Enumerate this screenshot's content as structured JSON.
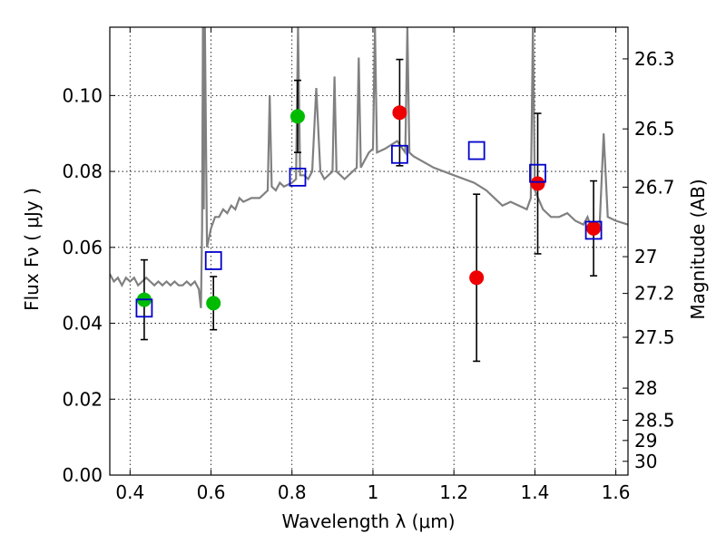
{
  "chart_data": {
    "type": "scatter",
    "xlabel": "Wavelength  λ (μm)",
    "ylabel": "Flux  Fν  ( μJy )",
    "y2label": "Magnitude (AB)",
    "xlim": [
      0.35,
      1.63
    ],
    "ylim": [
      0.0,
      0.118
    ],
    "grid": true,
    "x_ticks": [
      {
        "value": 0.4,
        "label": "0.4"
      },
      {
        "value": 0.6,
        "label": "0.6"
      },
      {
        "value": 0.8,
        "label": "0.8"
      },
      {
        "value": 1.0,
        "label": "1"
      },
      {
        "value": 1.2,
        "label": "1.2"
      },
      {
        "value": 1.4,
        "label": "1.4"
      },
      {
        "value": 1.6,
        "label": "1.6"
      }
    ],
    "y_ticks": [
      {
        "value": 0.0,
        "label": "0.00"
      },
      {
        "value": 0.02,
        "label": "0.02"
      },
      {
        "value": 0.04,
        "label": "0.04"
      },
      {
        "value": 0.06,
        "label": "0.06"
      },
      {
        "value": 0.08,
        "label": "0.08"
      },
      {
        "value": 0.1,
        "label": "0.10"
      }
    ],
    "y2_ticks": [
      {
        "label": "26.3",
        "mag": 26.3
      },
      {
        "label": "26.5",
        "mag": 26.5
      },
      {
        "label": "26.7",
        "mag": 26.7
      },
      {
        "label": "27",
        "mag": 27.0
      },
      {
        "label": "27.2",
        "mag": 27.2
      },
      {
        "label": "27.5",
        "mag": 27.5
      },
      {
        "label": "28",
        "mag": 28.0
      },
      {
        "label": "28.5",
        "mag": 28.5
      },
      {
        "label": "29",
        "mag": 29.0
      },
      {
        "label": "30",
        "mag": 30.0
      }
    ],
    "colors": {
      "spectrum": "#808080",
      "green_points": "#00bb00",
      "red_points": "#ee0000",
      "model_squares": "#0000cc",
      "errorbar": "#000000",
      "grid": "#000000"
    },
    "series": [
      {
        "kind": "spectrum",
        "points": [
          [
            0.35,
            0.053
          ],
          [
            0.36,
            0.051
          ],
          [
            0.37,
            0.052
          ],
          [
            0.38,
            0.05
          ],
          [
            0.39,
            0.052
          ],
          [
            0.4,
            0.051
          ],
          [
            0.41,
            0.052
          ],
          [
            0.42,
            0.05
          ],
          [
            0.43,
            0.051
          ],
          [
            0.44,
            0.052
          ],
          [
            0.45,
            0.051
          ],
          [
            0.46,
            0.05
          ],
          [
            0.47,
            0.051
          ],
          [
            0.48,
            0.05
          ],
          [
            0.49,
            0.051
          ],
          [
            0.5,
            0.05
          ],
          [
            0.51,
            0.051
          ],
          [
            0.52,
            0.05
          ],
          [
            0.53,
            0.05
          ],
          [
            0.54,
            0.051
          ],
          [
            0.55,
            0.05
          ],
          [
            0.56,
            0.051
          ],
          [
            0.57,
            0.049
          ],
          [
            0.575,
            0.044
          ],
          [
            0.578,
            0.065
          ],
          [
            0.58,
            0.118
          ],
          [
            0.582,
            0.07
          ],
          [
            0.585,
            0.118
          ],
          [
            0.59,
            0.06
          ],
          [
            0.6,
            0.065
          ],
          [
            0.61,
            0.068
          ],
          [
            0.62,
            0.068
          ],
          [
            0.63,
            0.07
          ],
          [
            0.64,
            0.069
          ],
          [
            0.65,
            0.071
          ],
          [
            0.66,
            0.07
          ],
          [
            0.67,
            0.073
          ],
          [
            0.68,
            0.072
          ],
          [
            0.7,
            0.073
          ],
          [
            0.72,
            0.073
          ],
          [
            0.74,
            0.075
          ],
          [
            0.745,
            0.1
          ],
          [
            0.75,
            0.076
          ],
          [
            0.76,
            0.075
          ],
          [
            0.77,
            0.077
          ],
          [
            0.78,
            0.076
          ],
          [
            0.8,
            0.077
          ],
          [
            0.81,
            0.078
          ],
          [
            0.815,
            0.118
          ],
          [
            0.82,
            0.079
          ],
          [
            0.83,
            0.079
          ],
          [
            0.84,
            0.078
          ],
          [
            0.85,
            0.08
          ],
          [
            0.86,
            0.102
          ],
          [
            0.87,
            0.08
          ],
          [
            0.88,
            0.078
          ],
          [
            0.9,
            0.08
          ],
          [
            0.905,
            0.105
          ],
          [
            0.91,
            0.08
          ],
          [
            0.93,
            0.078
          ],
          [
            0.95,
            0.08
          ],
          [
            0.96,
            0.081
          ],
          [
            0.965,
            0.11
          ],
          [
            0.97,
            0.081
          ],
          [
            0.98,
            0.083
          ],
          [
            0.99,
            0.085
          ],
          [
            1.0,
            0.086
          ],
          [
            1.005,
            0.118
          ],
          [
            1.01,
            0.085
          ],
          [
            1.03,
            0.086
          ],
          [
            1.06,
            0.088
          ],
          [
            1.08,
            0.085
          ],
          [
            1.085,
            0.118
          ],
          [
            1.09,
            0.085
          ],
          [
            1.1,
            0.084
          ],
          [
            1.15,
            0.081
          ],
          [
            1.2,
            0.079
          ],
          [
            1.25,
            0.077
          ],
          [
            1.28,
            0.075
          ],
          [
            1.3,
            0.073
          ],
          [
            1.32,
            0.071
          ],
          [
            1.34,
            0.072
          ],
          [
            1.36,
            0.071
          ],
          [
            1.38,
            0.07
          ],
          [
            1.39,
            0.073
          ],
          [
            1.395,
            0.118
          ],
          [
            1.4,
            0.075
          ],
          [
            1.42,
            0.07
          ],
          [
            1.44,
            0.068
          ],
          [
            1.46,
            0.068
          ],
          [
            1.48,
            0.069
          ],
          [
            1.5,
            0.067
          ],
          [
            1.52,
            0.066
          ],
          [
            1.53,
            0.068
          ],
          [
            1.54,
            0.065
          ],
          [
            1.55,
            0.066
          ],
          [
            1.56,
            0.066
          ],
          [
            1.57,
            0.09
          ],
          [
            1.58,
            0.068
          ],
          [
            1.6,
            0.067
          ],
          [
            1.63,
            0.066
          ]
        ]
      },
      {
        "kind": "green_points",
        "points": [
          {
            "x": 0.435,
            "y": 0.0462,
            "err": 0.0105
          },
          {
            "x": 0.606,
            "y": 0.0453,
            "err": 0.007
          },
          {
            "x": 0.814,
            "y": 0.0945,
            "err": 0.0095
          }
        ]
      },
      {
        "kind": "red_points",
        "points": [
          {
            "x": 1.066,
            "y": 0.0955,
            "err": 0.014
          },
          {
            "x": 1.256,
            "y": 0.052,
            "err": 0.022
          },
          {
            "x": 1.407,
            "y": 0.0768,
            "err": 0.0185
          },
          {
            "x": 1.545,
            "y": 0.065,
            "err": 0.0125
          }
        ]
      },
      {
        "kind": "model_squares",
        "points": [
          {
            "x": 0.435,
            "y": 0.044
          },
          {
            "x": 0.606,
            "y": 0.0565
          },
          {
            "x": 0.814,
            "y": 0.0785
          },
          {
            "x": 1.066,
            "y": 0.0845
          },
          {
            "x": 1.256,
            "y": 0.0855
          },
          {
            "x": 1.407,
            "y": 0.0795
          },
          {
            "x": 1.545,
            "y": 0.0645
          }
        ]
      }
    ]
  }
}
